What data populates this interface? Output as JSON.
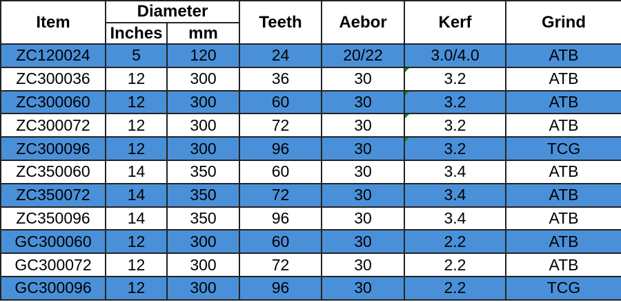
{
  "header": {
    "item": "Item",
    "diameter": "Diameter",
    "inches": "Inches",
    "mm": "mm",
    "teeth": "Teeth",
    "aebor": "Aebor",
    "kerf": "Kerf",
    "grind": "Grind"
  },
  "colors": {
    "row_highlight": "#4a90d9",
    "comment_marker": "#1a8a1a"
  },
  "rows": [
    {
      "item": "ZC120024",
      "inches": "5",
      "mm": "120",
      "teeth": "24",
      "aebor": "20/22",
      "kerf": "3.0/4.0",
      "grind": "ATB",
      "highlight": true,
      "kerf_marker": false
    },
    {
      "item": "ZC300036",
      "inches": "12",
      "mm": "300",
      "teeth": "36",
      "aebor": "30",
      "kerf": "3.2",
      "grind": "ATB",
      "highlight": false,
      "kerf_marker": true
    },
    {
      "item": "ZC300060",
      "inches": "12",
      "mm": "300",
      "teeth": "60",
      "aebor": "30",
      "kerf": "3.2",
      "grind": "ATB",
      "highlight": true,
      "kerf_marker": true
    },
    {
      "item": "ZC300072",
      "inches": "12",
      "mm": "300",
      "teeth": "72",
      "aebor": "30",
      "kerf": "3.2",
      "grind": "ATB",
      "highlight": false,
      "kerf_marker": true
    },
    {
      "item": "ZC300096",
      "inches": "12",
      "mm": "300",
      "teeth": "96",
      "aebor": "30",
      "kerf": "3.2",
      "grind": "TCG",
      "highlight": true,
      "kerf_marker": true
    },
    {
      "item": "ZC350060",
      "inches": "14",
      "mm": "350",
      "teeth": "60",
      "aebor": "30",
      "kerf": "3.4",
      "grind": "ATB",
      "highlight": false,
      "kerf_marker": false
    },
    {
      "item": "ZC350072",
      "inches": "14",
      "mm": "350",
      "teeth": "72",
      "aebor": "30",
      "kerf": "3.4",
      "grind": "ATB",
      "highlight": true,
      "kerf_marker": false
    },
    {
      "item": "ZC350096",
      "inches": "14",
      "mm": "350",
      "teeth": "96",
      "aebor": "30",
      "kerf": "3.4",
      "grind": "ATB",
      "highlight": false,
      "kerf_marker": false
    },
    {
      "item": "GC300060",
      "inches": "12",
      "mm": "300",
      "teeth": "60",
      "aebor": "30",
      "kerf": "2.2",
      "grind": "ATB",
      "highlight": true,
      "kerf_marker": false
    },
    {
      "item": "GC300072",
      "inches": "12",
      "mm": "300",
      "teeth": "72",
      "aebor": "30",
      "kerf": "2.2",
      "grind": "ATB",
      "highlight": false,
      "kerf_marker": false
    },
    {
      "item": "GC300096",
      "inches": "12",
      "mm": "300",
      "teeth": "96",
      "aebor": "30",
      "kerf": "2.2",
      "grind": "TCG",
      "highlight": true,
      "kerf_marker": false
    }
  ]
}
